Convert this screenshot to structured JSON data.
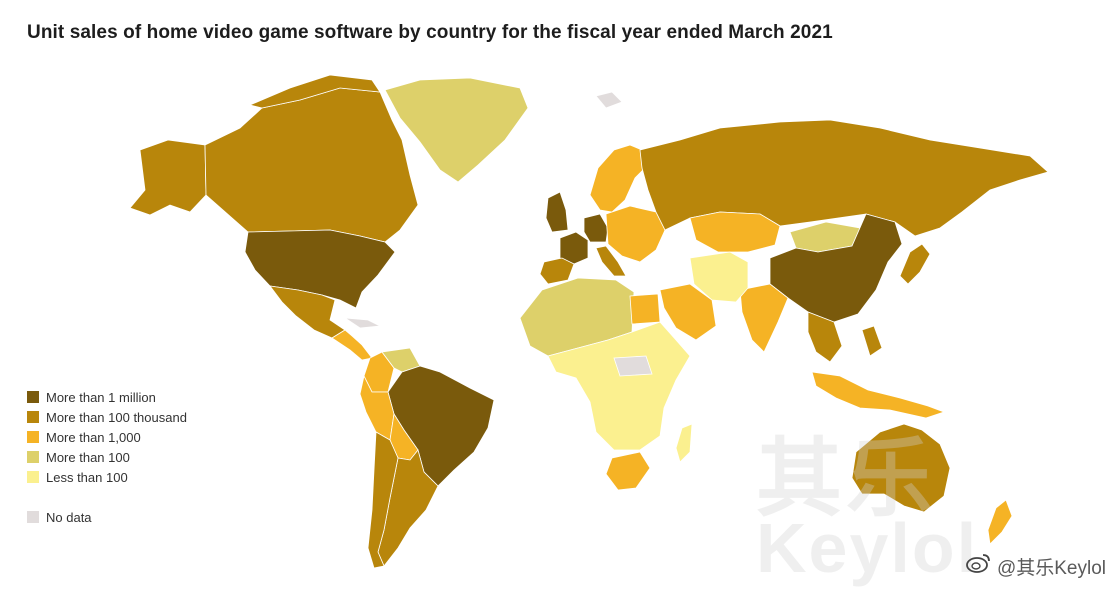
{
  "title": "Unit sales of home video game software by country for the fiscal year ended March 2021",
  "legend": [
    {
      "label": "More than 1 million",
      "color": "#7a5a0c"
    },
    {
      "label": "More than 100 thousand",
      "color": "#b8860b"
    },
    {
      "label": "More than 1,000",
      "color": "#f5b325"
    },
    {
      "label": "More than 100",
      "color": "#ddd06a"
    },
    {
      "label": "Less than 100",
      "color": "#fbf08f"
    }
  ],
  "no_data": {
    "label": "No data",
    "color": "#e1dcdc"
  },
  "watermark": {
    "background_text": "其乐",
    "background_text2": "Keylol",
    "handle": "@其乐Keylol"
  },
  "regions": [
    {
      "name": "Alaska",
      "category": "More than 100 thousand"
    },
    {
      "name": "Canada",
      "category": "More than 100 thousand"
    },
    {
      "name": "Greenland",
      "category": "More than 100"
    },
    {
      "name": "United States",
      "category": "More than 1 million"
    },
    {
      "name": "Mexico",
      "category": "More than 100 thousand"
    },
    {
      "name": "Central America",
      "category": "More than 1,000"
    },
    {
      "name": "Colombia",
      "category": "More than 1,000"
    },
    {
      "name": "Venezuela",
      "category": "More than 100"
    },
    {
      "name": "Brazil",
      "category": "More than 1 million"
    },
    {
      "name": "Peru",
      "category": "More than 1,000"
    },
    {
      "name": "Bolivia",
      "category": "More than 1,000"
    },
    {
      "name": "Argentina",
      "category": "More than 100 thousand"
    },
    {
      "name": "Chile",
      "category": "More than 100 thousand"
    },
    {
      "name": "United Kingdom",
      "category": "More than 1 million"
    },
    {
      "name": "France",
      "category": "More than 1 million"
    },
    {
      "name": "Germany",
      "category": "More than 1 million"
    },
    {
      "name": "Spain",
      "category": "More than 100 thousand"
    },
    {
      "name": "Italy",
      "category": "More than 100 thousand"
    },
    {
      "name": "Scandinavia",
      "category": "More than 1,000"
    },
    {
      "name": "Eastern Europe",
      "category": "More than 1,000"
    },
    {
      "name": "Russia",
      "category": "More than 100 thousand"
    },
    {
      "name": "Kazakhstan",
      "category": "More than 1,000"
    },
    {
      "name": "Mongolia",
      "category": "More than 100"
    },
    {
      "name": "China",
      "category": "More than 1 million"
    },
    {
      "name": "Japan",
      "category": "More than 100 thousand"
    },
    {
      "name": "India",
      "category": "More than 1,000"
    },
    {
      "name": "Middle East",
      "category": "More than 1,000"
    },
    {
      "name": "Iran",
      "category": "Less than 100"
    },
    {
      "name": "Southeast Asia",
      "category": "More than 100 thousand"
    },
    {
      "name": "Indonesia",
      "category": "More than 1,000"
    },
    {
      "name": "Australia",
      "category": "More than 100 thousand"
    },
    {
      "name": "New Zealand",
      "category": "More than 1,000"
    },
    {
      "name": "North Africa",
      "category": "More than 100"
    },
    {
      "name": "Egypt",
      "category": "More than 1,000"
    },
    {
      "name": "Africa",
      "category": "Less than 100"
    },
    {
      "name": "South Africa",
      "category": "More than 1,000"
    },
    {
      "name": "Madagascar",
      "category": "Less than 100"
    }
  ]
}
